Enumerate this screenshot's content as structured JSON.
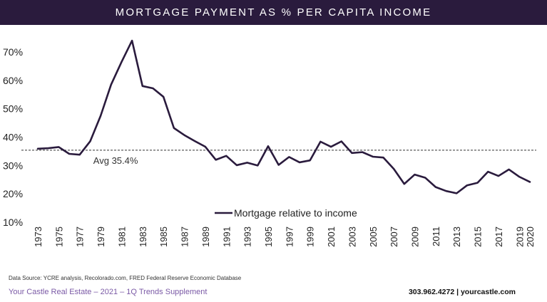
{
  "title": "MORTGAGE PAYMENT AS % PER CAPITA INCOME",
  "source": "Data Source: YCRE analysis, Recolorado.com, FRED Federal Reserve Economic Database",
  "footer": {
    "left": "Your Castle Real Estate – 2021 – 1Q Trends Supplement",
    "right": "303.962.4272 | yourcastle.com"
  },
  "colors": {
    "line": "#2a1b3d",
    "title_bar": "#2a1b3d",
    "footer_accent": "#7b5aa6"
  },
  "chart_data": {
    "type": "line",
    "ylim": [
      10,
      70
    ],
    "yticks": [
      10,
      20,
      30,
      40,
      50,
      60,
      70
    ],
    "ytick_labels": [
      "10%",
      "20%",
      "30%",
      "40%",
      "50%",
      "60%",
      "70%"
    ],
    "xlim": [
      1973,
      2020
    ],
    "xticks": [
      1973,
      1975,
      1977,
      1979,
      1981,
      1983,
      1985,
      1987,
      1989,
      1991,
      1993,
      1995,
      1997,
      1999,
      2001,
      2003,
      2005,
      2007,
      2009,
      2011,
      2013,
      2015,
      2017,
      2019,
      2020
    ],
    "grid": false,
    "legend": "bottom-center",
    "series": [
      {
        "name": "Mortgage relative to income",
        "x": [
          1973,
          1974,
          1975,
          1976,
          1977,
          1978,
          1979,
          1980,
          1981,
          1982,
          1983,
          1984,
          1985,
          1986,
          1987,
          1988,
          1989,
          1990,
          1991,
          1992,
          1993,
          1994,
          1995,
          1996,
          1997,
          1998,
          1999,
          2000,
          2001,
          2002,
          2003,
          2004,
          2005,
          2006,
          2007,
          2008,
          2009,
          2010,
          2011,
          2012,
          2013,
          2014,
          2015,
          2016,
          2017,
          2018,
          2019,
          2020
        ],
        "values": [
          35.9,
          36.1,
          36.5,
          34.1,
          33.8,
          38.5,
          47.5,
          58.5,
          66.5,
          74.0,
          58.0,
          57.2,
          54.2,
          43.2,
          40.7,
          38.6,
          36.6,
          32.0,
          33.4,
          30.1,
          31.0,
          30.0,
          36.8,
          30.2,
          33.0,
          31.1,
          31.8,
          38.4,
          36.6,
          38.5,
          34.4,
          34.7,
          33.1,
          32.8,
          28.8,
          23.5,
          26.8,
          25.7,
          22.4,
          21.0,
          20.2,
          23.0,
          23.9,
          27.8,
          26.3,
          28.6,
          26.0,
          24.2
        ]
      }
    ],
    "reference_line": {
      "value": 35.4,
      "label": "Avg 35.4%"
    }
  }
}
